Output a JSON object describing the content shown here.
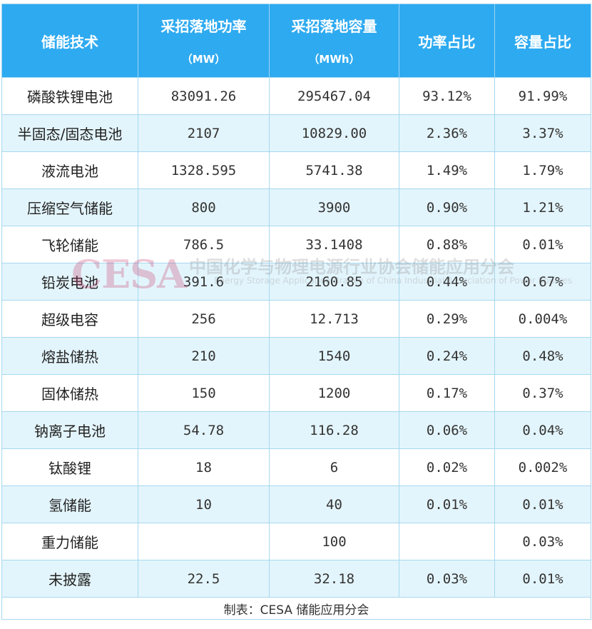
{
  "headers": {
    "tech": "储能技术",
    "power": "采招落地功率",
    "power_unit": "（MW）",
    "capacity": "采招落地容量",
    "capacity_unit": "（MWh）",
    "power_share": "功率占比",
    "capacity_share": "容量占比"
  },
  "rows": [
    {
      "tech": "磷酸铁锂电池",
      "power": "83091.26",
      "capacity": "295467.04",
      "power_share": "93.12%",
      "capacity_share": "91.99%"
    },
    {
      "tech": "半固态/固态电池",
      "power": "2107",
      "capacity": "10829.00",
      "power_share": "2.36%",
      "capacity_share": "3.37%"
    },
    {
      "tech": "液流电池",
      "power": "1328.595",
      "capacity": "5741.38",
      "power_share": "1.49%",
      "capacity_share": "1.79%"
    },
    {
      "tech": "压缩空气储能",
      "power": "800",
      "capacity": "3900",
      "power_share": "0.90%",
      "capacity_share": "1.21%"
    },
    {
      "tech": "飞轮储能",
      "power": "786.5",
      "capacity": "33.1408",
      "power_share": "0.88%",
      "capacity_share": "0.01%"
    },
    {
      "tech": "铅炭电池",
      "power": "391.6",
      "capacity": "2160.85",
      "power_share": "0.44%",
      "capacity_share": "0.67%"
    },
    {
      "tech": "超级电容",
      "power": "256",
      "capacity": "12.713",
      "power_share": "0.29%",
      "capacity_share": "0.004%"
    },
    {
      "tech": "熔盐储热",
      "power": "210",
      "capacity": "1540",
      "power_share": "0.24%",
      "capacity_share": "0.48%"
    },
    {
      "tech": "固体储热",
      "power": "150",
      "capacity": "1200",
      "power_share": "0.17%",
      "capacity_share": "0.37%"
    },
    {
      "tech": "钠离子电池",
      "power": "54.78",
      "capacity": "116.28",
      "power_share": "0.06%",
      "capacity_share": "0.04%"
    },
    {
      "tech": "钛酸锂",
      "power": "18",
      "capacity": "6",
      "power_share": "0.02%",
      "capacity_share": "0.002%"
    },
    {
      "tech": "氢储能",
      "power": "10",
      "capacity": "40",
      "power_share": "0.01%",
      "capacity_share": "0.01%"
    },
    {
      "tech": "重力储能",
      "power": "",
      "capacity": "100",
      "power_share": "",
      "capacity_share": "0.03%"
    },
    {
      "tech": "未披露",
      "power": "22.5",
      "capacity": "32.18",
      "power_share": "0.03%",
      "capacity_share": "0.01%"
    }
  ],
  "footer": "制表：CESA 储能应用分会",
  "watermark": {
    "logo": "CESA",
    "org_cn": "中国化学与物理电源行业协会储能应用分会",
    "org_en": "Energy Storage Application Branch of China Industrial Association of Power Sources"
  },
  "colors": {
    "header_bg": "#2eaaf0",
    "stripe_bg": "#e3f5fc",
    "border": "#a6d8f0"
  }
}
